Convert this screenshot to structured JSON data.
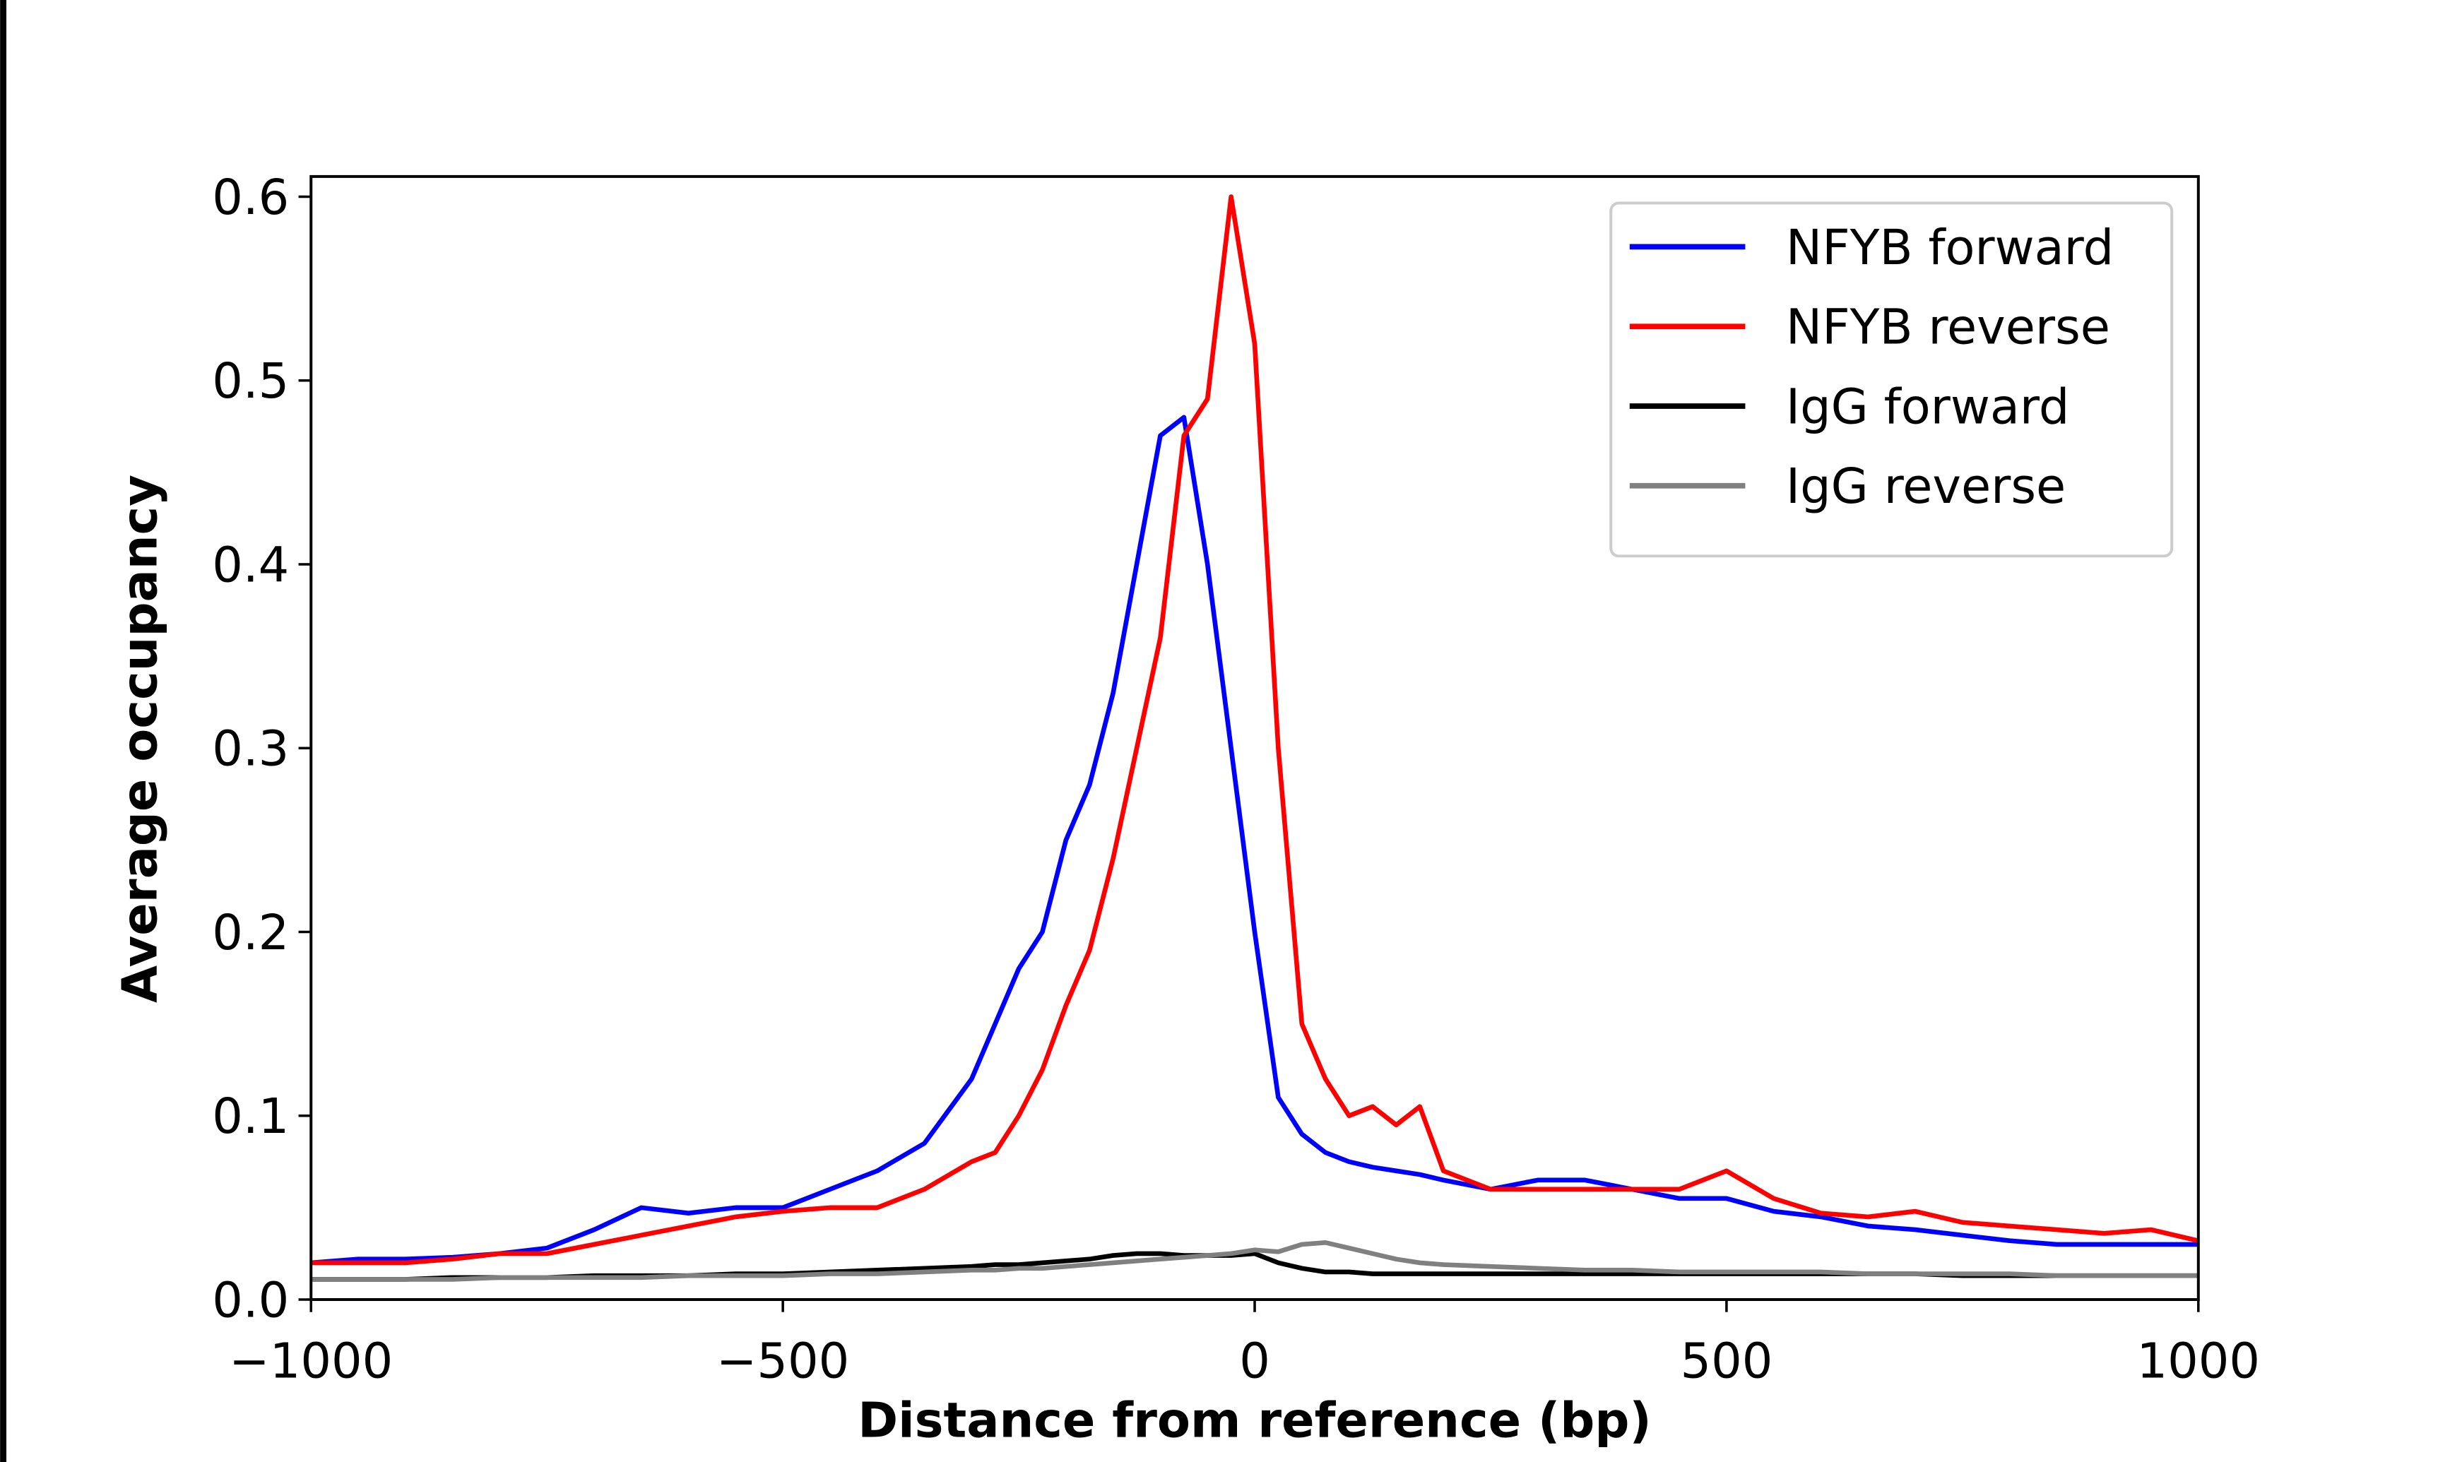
{
  "chart_data": {
    "type": "line",
    "xlabel": "Distance from reference (bp)",
    "ylabel": "Average occupancy",
    "x": [
      -1000,
      -950,
      -900,
      -850,
      -800,
      -750,
      -700,
      -650,
      -600,
      -550,
      -500,
      -450,
      -400,
      -350,
      -300,
      -275,
      -250,
      -225,
      -200,
      -175,
      -150,
      -125,
      -100,
      -75,
      -50,
      -25,
      0,
      25,
      50,
      75,
      100,
      125,
      150,
      175,
      200,
      250,
      300,
      350,
      400,
      450,
      500,
      550,
      600,
      650,
      700,
      750,
      800,
      850,
      900,
      950,
      1000
    ],
    "series": [
      {
        "name": "NFYB forward",
        "color": "#0000ff",
        "values": [
          0.02,
          0.022,
          0.022,
          0.023,
          0.025,
          0.028,
          0.038,
          0.05,
          0.047,
          0.05,
          0.05,
          0.06,
          0.07,
          0.085,
          0.12,
          0.15,
          0.18,
          0.2,
          0.25,
          0.28,
          0.33,
          0.4,
          0.47,
          0.48,
          0.4,
          0.3,
          0.2,
          0.11,
          0.09,
          0.08,
          0.075,
          0.072,
          0.07,
          0.068,
          0.065,
          0.06,
          0.065,
          0.065,
          0.06,
          0.055,
          0.055,
          0.048,
          0.045,
          0.04,
          0.038,
          0.035,
          0.032,
          0.03,
          0.03,
          0.03,
          0.03
        ]
      },
      {
        "name": "NFYB reverse",
        "color": "#ff0000",
        "values": [
          0.02,
          0.02,
          0.02,
          0.022,
          0.025,
          0.025,
          0.03,
          0.035,
          0.04,
          0.045,
          0.048,
          0.05,
          0.05,
          0.06,
          0.075,
          0.08,
          0.1,
          0.125,
          0.16,
          0.19,
          0.24,
          0.3,
          0.36,
          0.47,
          0.49,
          0.6,
          0.52,
          0.3,
          0.15,
          0.12,
          0.1,
          0.105,
          0.095,
          0.105,
          0.07,
          0.06,
          0.06,
          0.06,
          0.06,
          0.06,
          0.07,
          0.055,
          0.047,
          0.045,
          0.048,
          0.042,
          0.04,
          0.038,
          0.036,
          0.038,
          0.032
        ]
      },
      {
        "name": "IgG forward",
        "color": "#000000",
        "values": [
          0.011,
          0.011,
          0.011,
          0.012,
          0.012,
          0.012,
          0.013,
          0.013,
          0.013,
          0.014,
          0.014,
          0.015,
          0.016,
          0.017,
          0.018,
          0.019,
          0.019,
          0.02,
          0.021,
          0.022,
          0.024,
          0.025,
          0.025,
          0.024,
          0.024,
          0.024,
          0.025,
          0.02,
          0.017,
          0.015,
          0.015,
          0.014,
          0.014,
          0.014,
          0.014,
          0.014,
          0.014,
          0.014,
          0.014,
          0.014,
          0.014,
          0.014,
          0.014,
          0.014,
          0.014,
          0.013,
          0.013,
          0.013,
          0.013,
          0.013,
          0.013
        ]
      },
      {
        "name": "IgG reverse",
        "color": "#808080",
        "values": [
          0.011,
          0.011,
          0.011,
          0.011,
          0.012,
          0.012,
          0.012,
          0.012,
          0.013,
          0.013,
          0.013,
          0.014,
          0.014,
          0.015,
          0.016,
          0.016,
          0.017,
          0.017,
          0.018,
          0.019,
          0.02,
          0.021,
          0.022,
          0.023,
          0.024,
          0.025,
          0.027,
          0.026,
          0.03,
          0.031,
          0.028,
          0.025,
          0.022,
          0.02,
          0.019,
          0.018,
          0.017,
          0.016,
          0.016,
          0.015,
          0.015,
          0.015,
          0.015,
          0.014,
          0.014,
          0.014,
          0.014,
          0.013,
          0.013,
          0.013,
          0.013
        ]
      }
    ],
    "xlim": [
      -1000,
      1000
    ],
    "xticks": [
      {
        "value": -1000,
        "label": "−1000"
      },
      {
        "value": -500,
        "label": "−500"
      },
      0,
      500,
      1000
    ],
    "ylim": [
      0,
      0.611
    ],
    "yticks": [
      {
        "value": 0,
        "label": "0.0"
      },
      0.1,
      0.2,
      0.3,
      0.4,
      0.5,
      0.6
    ],
    "legend": "upper right"
  }
}
